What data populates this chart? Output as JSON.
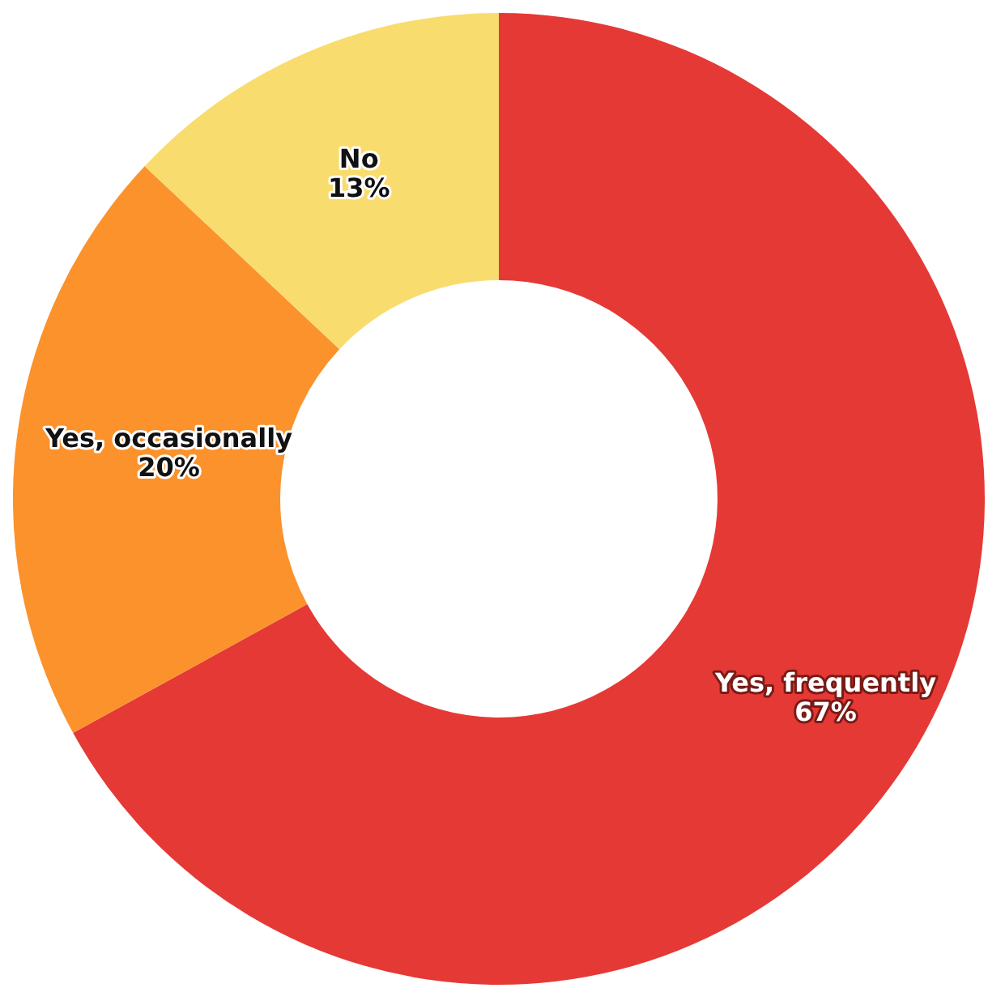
{
  "chart_data": {
    "type": "donut",
    "categories": [
      "Yes, frequently",
      "Yes, occasionally",
      "No"
    ],
    "values": [
      67,
      20,
      13
    ],
    "value_labels": [
      "67%",
      "20%",
      "13%"
    ],
    "colors": [
      "#e53935",
      "#fb922c",
      "#f9dc6e"
    ],
    "legend": false
  }
}
